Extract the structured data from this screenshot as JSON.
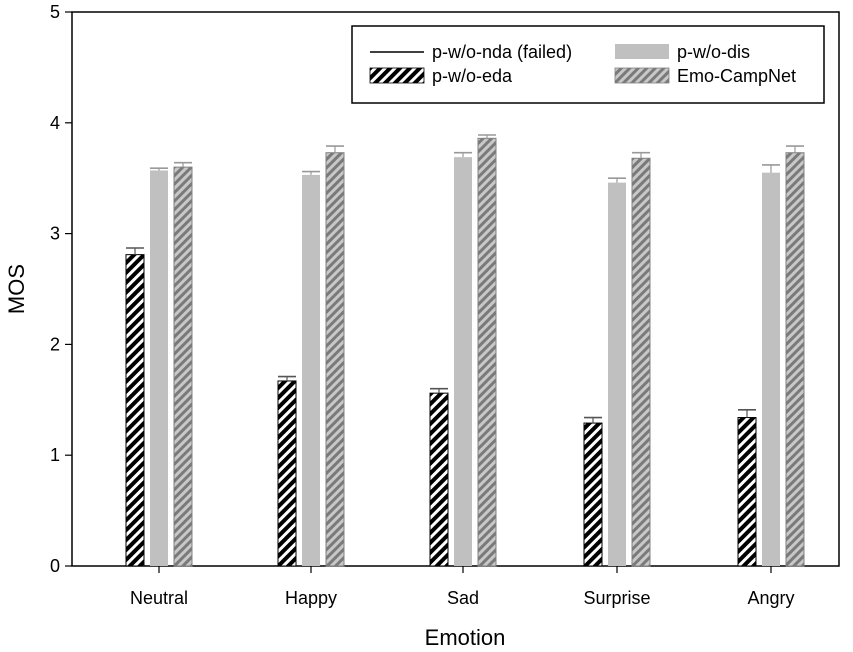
{
  "chart_data": {
    "type": "bar",
    "title": "",
    "xlabel": "Emotion",
    "ylabel": "MOS",
    "ylim": [
      0,
      5
    ],
    "yticks": [
      "0",
      "1",
      "2",
      "3",
      "4",
      "5"
    ],
    "categories": [
      "Neutral",
      "Happy",
      "Sad",
      "Surprise",
      "Angry"
    ],
    "legend_position": "top-right",
    "series": [
      {
        "name": "p-w/o-nda (failed)",
        "style": "line",
        "color": "#000000",
        "values": [
          null,
          null,
          null,
          null,
          null
        ],
        "errors": [
          null,
          null,
          null,
          null,
          null
        ]
      },
      {
        "name": "p-w/o-eda",
        "style": "hatch-dark",
        "color": "#000000",
        "values": [
          2.81,
          1.67,
          1.56,
          1.29,
          1.34
        ],
        "errors": [
          0.06,
          0.04,
          0.04,
          0.05,
          0.07
        ]
      },
      {
        "name": "p-w/o-dis",
        "style": "solid",
        "color": "#c0c0c0",
        "values": [
          3.57,
          3.53,
          3.69,
          3.46,
          3.55
        ],
        "errors": [
          0.02,
          0.03,
          0.04,
          0.04,
          0.07
        ]
      },
      {
        "name": "Emo-CampNet",
        "style": "hatch-grey",
        "color": "#808080",
        "values": [
          3.6,
          3.73,
          3.86,
          3.68,
          3.73
        ],
        "errors": [
          0.04,
          0.06,
          0.03,
          0.05,
          0.06
        ]
      }
    ]
  }
}
